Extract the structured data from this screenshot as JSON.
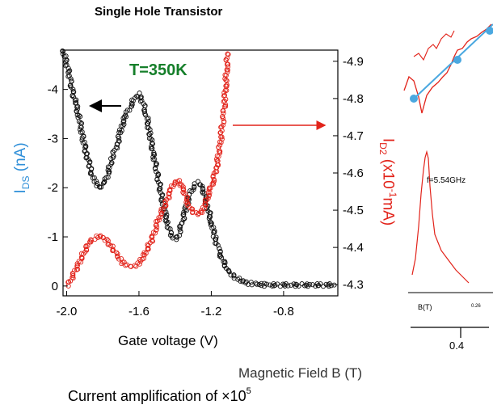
{
  "chart_data": {
    "type": "scatter",
    "title": "Single Hole Transistor",
    "annotation": "T=350K",
    "xlabel": "Gate voltage (V)",
    "ylabel_left": {
      "main": "I",
      "sub": "DS",
      "rest": " (nA)",
      "color": "#2f8fd8"
    },
    "ylabel_right": {
      "main": "I",
      "sub": "D2",
      "pre_sup": " (x10",
      "sup": "-1",
      "rest": "mA)",
      "color": "#e2231a"
    },
    "x_ticks": [
      "-2.0",
      "-1.6",
      "-1.2",
      "-0.8"
    ],
    "x_tick_values": [
      -2.0,
      -1.6,
      -1.2,
      -0.8
    ],
    "xlim": [
      -2.02,
      -0.5
    ],
    "y_left_ticks": [
      "0",
      "-1",
      "-2",
      "-3",
      "-4"
    ],
    "y_left_tick_values": [
      0,
      -1,
      -2,
      -3,
      -4
    ],
    "y_left_range": [
      0.2,
      -4.8
    ],
    "y_right_ticks": [
      "-4.3",
      "-4.4",
      "-4.5",
      "-4.6",
      "-4.7",
      "-4.8",
      "-4.9"
    ],
    "y_right_tick_values": [
      -4.3,
      -4.4,
      -4.5,
      -4.6,
      -4.7,
      -4.8,
      -4.9
    ],
    "y_right_range": [
      -4.27,
      -4.93
    ],
    "series": [
      {
        "axis": "left",
        "color": "#111111",
        "x": [
          -2.02,
          -1.99,
          -1.97,
          -1.95,
          -1.93,
          -1.91,
          -1.89,
          -1.87,
          -1.85,
          -1.83,
          -1.81,
          -1.79,
          -1.77,
          -1.75,
          -1.72,
          -1.7,
          -1.67,
          -1.64,
          -1.62,
          -1.6,
          -1.58,
          -1.56,
          -1.54,
          -1.52,
          -1.5,
          -1.48,
          -1.46,
          -1.44,
          -1.42,
          -1.4,
          -1.38,
          -1.36,
          -1.34,
          -1.32,
          -1.3,
          -1.28,
          -1.26,
          -1.24,
          -1.22,
          -1.2,
          -1.18,
          -1.16,
          -1.14,
          -1.12,
          -1.1,
          -1.08,
          -1.06,
          -1.04,
          -1.02,
          -1.0,
          -0.98,
          -0.96,
          -0.94,
          -0.92,
          -0.9,
          -0.85,
          -0.8,
          -0.75,
          -0.7,
          -0.65,
          -0.6,
          -0.55,
          -0.52
        ],
        "y": [
          -4.8,
          -4.4,
          -4.0,
          -3.7,
          -3.4,
          -3.0,
          -2.7,
          -2.4,
          -2.15,
          -2.05,
          -2.0,
          -2.1,
          -2.3,
          -2.6,
          -2.9,
          -3.2,
          -3.5,
          -3.7,
          -3.85,
          -3.9,
          -3.75,
          -3.5,
          -3.1,
          -2.7,
          -2.3,
          -1.9,
          -1.55,
          -1.25,
          -1.0,
          -0.95,
          -1.05,
          -1.3,
          -1.6,
          -1.85,
          -2.0,
          -2.1,
          -2.05,
          -1.9,
          -1.6,
          -1.3,
          -1.0,
          -0.75,
          -0.55,
          -0.4,
          -0.3,
          -0.22,
          -0.16,
          -0.12,
          -0.09,
          -0.07,
          -0.05,
          -0.04,
          -0.03,
          -0.03,
          -0.02,
          -0.02,
          -0.02,
          -0.02,
          -0.02,
          -0.02,
          -0.02,
          -0.02,
          -0.02
        ]
      },
      {
        "axis": "right",
        "color": "#e2231a",
        "x": [
          -1.99,
          -1.97,
          -1.95,
          -1.93,
          -1.91,
          -1.89,
          -1.87,
          -1.85,
          -1.83,
          -1.81,
          -1.79,
          -1.77,
          -1.75,
          -1.73,
          -1.71,
          -1.69,
          -1.67,
          -1.65,
          -1.63,
          -1.61,
          -1.59,
          -1.57,
          -1.55,
          -1.53,
          -1.51,
          -1.49,
          -1.47,
          -1.45,
          -1.43,
          -1.41,
          -1.39,
          -1.37,
          -1.35,
          -1.33,
          -1.31,
          -1.29,
          -1.27,
          -1.25,
          -1.23,
          -1.21,
          -1.19,
          -1.17,
          -1.15,
          -1.14,
          -1.13,
          -1.125,
          -1.12,
          -1.115,
          -1.11
        ],
        "y": [
          -4.3,
          -4.32,
          -4.34,
          -4.36,
          -4.38,
          -4.4,
          -4.415,
          -4.425,
          -4.43,
          -4.43,
          -4.425,
          -4.415,
          -4.4,
          -4.385,
          -4.37,
          -4.36,
          -4.355,
          -4.35,
          -4.35,
          -4.355,
          -4.365,
          -4.38,
          -4.4,
          -4.42,
          -4.45,
          -4.48,
          -4.5,
          -4.52,
          -4.55,
          -4.57,
          -4.58,
          -4.57,
          -4.55,
          -4.52,
          -4.5,
          -4.49,
          -4.49,
          -4.5,
          -4.52,
          -4.55,
          -4.58,
          -4.62,
          -4.68,
          -4.72,
          -4.76,
          -4.8,
          -4.84,
          -4.88,
          -4.92
        ]
      }
    ],
    "arrow_left_label": "",
    "inset": {
      "frequency_label": "f=5.54GHz",
      "x_axis_label": "B(T)",
      "x_tick": "0.26",
      "bottom_tick": "0.4",
      "bottom_axis_label": "Magnetic Field B (T)"
    }
  },
  "note": {
    "text": "Current amplification of ×10",
    "sup": "5"
  }
}
